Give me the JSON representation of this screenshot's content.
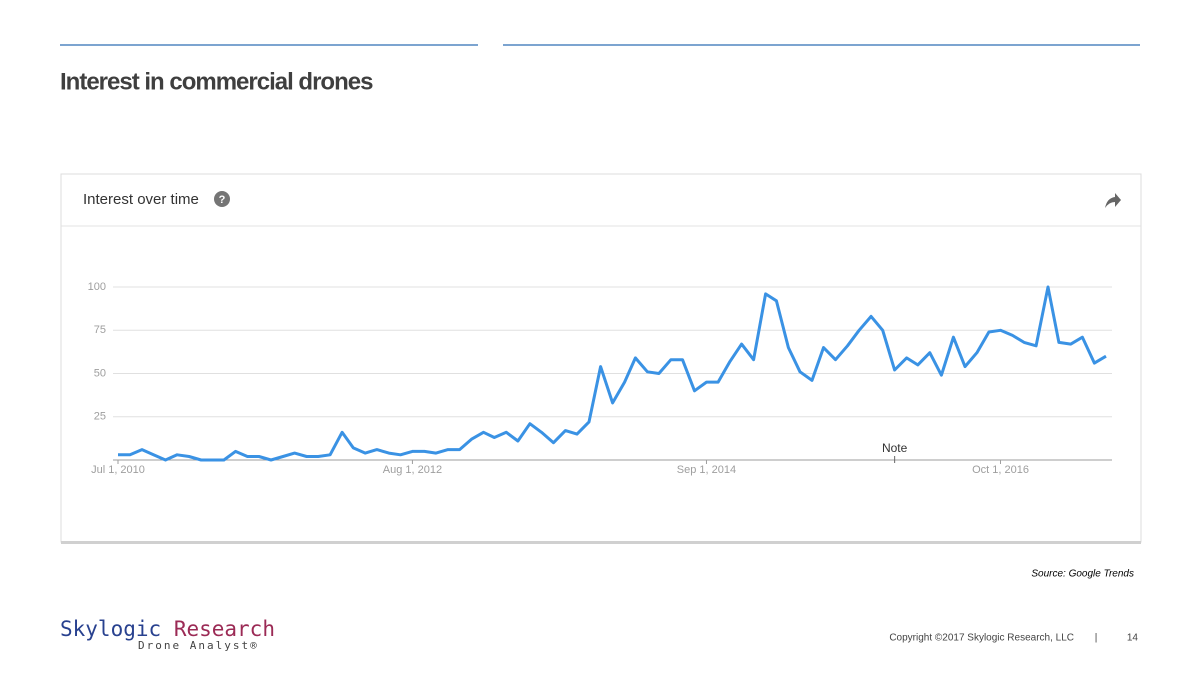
{
  "title": "Interest in commercial drones",
  "chart_data": {
    "type": "line",
    "title": "Interest over time",
    "x": [
      "2010-07-01",
      "2010-08-01",
      "2010-09-01",
      "2010-10-01",
      "2010-11-01",
      "2010-12-01",
      "2011-01-01",
      "2011-02-01",
      "2011-03-01",
      "2011-04-01",
      "2011-05-01",
      "2011-06-01",
      "2011-07-01",
      "2011-08-01",
      "2011-09-01",
      "2011-10-01",
      "2011-11-01",
      "2011-12-01",
      "2012-01-01",
      "2012-02-01",
      "2012-03-01",
      "2012-04-01",
      "2012-05-01",
      "2012-06-01",
      "2012-07-01",
      "2012-08-01",
      "2012-09-01",
      "2012-10-01",
      "2012-11-01",
      "2012-12-01",
      "2013-01-01",
      "2013-02-01",
      "2013-03-01",
      "2013-04-01",
      "2013-05-01",
      "2013-06-01",
      "2013-07-01",
      "2013-08-01",
      "2013-09-01",
      "2013-10-01",
      "2013-11-01",
      "2013-12-01",
      "2014-01-01",
      "2014-02-01",
      "2014-03-01",
      "2014-04-01",
      "2014-05-01",
      "2014-06-01",
      "2014-07-01",
      "2014-08-01",
      "2014-09-01",
      "2014-10-01",
      "2014-11-01",
      "2014-12-01",
      "2015-01-01",
      "2015-02-01",
      "2015-03-01",
      "2015-04-01",
      "2015-05-01",
      "2015-06-01",
      "2015-07-01",
      "2015-08-01",
      "2015-09-01",
      "2015-10-01",
      "2015-11-01",
      "2015-12-01",
      "2016-01-01",
      "2016-02-01",
      "2016-03-01",
      "2016-04-01",
      "2016-05-01",
      "2016-06-01",
      "2016-07-01",
      "2016-08-01",
      "2016-09-01",
      "2016-10-01",
      "2016-11-01",
      "2016-12-01",
      "2017-01-01",
      "2017-02-01",
      "2017-03-01",
      "2017-04-01",
      "2017-05-01",
      "2017-06-01",
      "2017-07-01"
    ],
    "series": [
      {
        "name": "commercial drones",
        "color": "#3a92e4",
        "values": [
          3,
          3,
          6,
          3,
          0,
          3,
          2,
          0,
          0,
          0,
          5,
          2,
          2,
          0,
          2,
          4,
          2,
          2,
          3,
          16,
          7,
          4,
          6,
          4,
          3,
          5,
          5,
          4,
          6,
          6,
          12,
          16,
          13,
          16,
          11,
          21,
          16,
          10,
          17,
          15,
          22,
          54,
          33,
          45,
          59,
          51,
          50,
          58,
          58,
          40,
          45,
          45,
          57,
          67,
          58,
          96,
          92,
          65,
          51,
          46,
          65,
          58,
          66,
          75,
          83,
          75,
          52,
          59,
          55,
          62,
          49,
          71,
          54,
          62,
          74,
          75,
          72,
          68,
          66,
          100,
          68,
          67,
          71,
          56,
          60
        ]
      }
    ],
    "xlim": [
      "2010-07-01",
      "2017-07-01"
    ],
    "xticks": [
      {
        "value": "2010-07-01",
        "label": "Jul 1, 2010"
      },
      {
        "value": "2012-08-01",
        "label": "Aug 1, 2012"
      },
      {
        "value": "2014-09-01",
        "label": "Sep 1, 2014"
      },
      {
        "value": "2016-10-01",
        "label": "Oct 1, 2016"
      }
    ],
    "ylim": [
      0,
      100
    ],
    "yticks": [
      25,
      50,
      75,
      100
    ],
    "grid": true,
    "annotations": [
      {
        "x": "2016-01-01",
        "text": "Note"
      }
    ]
  },
  "source": "Source: Google Trends",
  "logo": {
    "part1": "Skylogic",
    "part2": "Research",
    "tagline": "Drone Analyst®"
  },
  "footer": {
    "copyright": "Copyright ©2017 Skylogic Research, LLC",
    "separator": "|",
    "page": "14"
  }
}
